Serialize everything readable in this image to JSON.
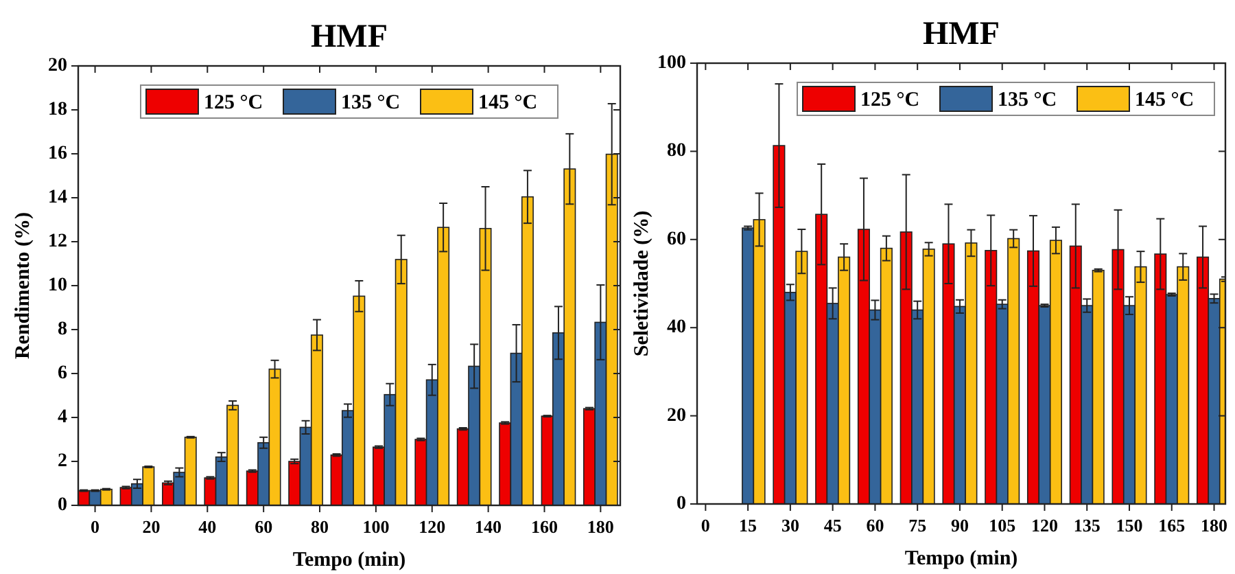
{
  "chart_data": [
    {
      "type": "bar",
      "title": "HMF",
      "xlabel": "Tempo (min)",
      "ylabel": "Rendimento (%)",
      "x": [
        0,
        15,
        30,
        45,
        60,
        75,
        90,
        105,
        120,
        135,
        150,
        165,
        180
      ],
      "xlim": [
        -6,
        187
      ],
      "xticks": [
        0,
        20,
        40,
        60,
        80,
        100,
        120,
        140,
        160,
        180
      ],
      "ylim": [
        0,
        20
      ],
      "yticks": [
        0,
        2,
        4,
        6,
        8,
        10,
        12,
        14,
        16,
        18,
        20
      ],
      "legend": "top",
      "grid": false,
      "series": [
        {
          "name": "125 °C",
          "color": "#ee0000",
          "values": [
            0.67,
            0.81,
            1.02,
            1.25,
            1.56,
            2.0,
            2.29,
            2.65,
            3.0,
            3.48,
            3.75,
            4.06,
            4.4
          ],
          "errors": [
            0.03,
            0.05,
            0.08,
            0.05,
            0.05,
            0.1,
            0.05,
            0.05,
            0.05,
            0.05,
            0.05,
            0.03,
            0.05
          ]
        },
        {
          "name": "135 °C",
          "color": "#34659a",
          "values": [
            0.67,
            0.98,
            1.5,
            2.2,
            2.85,
            3.55,
            4.31,
            5.04,
            5.71,
            6.33,
            6.92,
            7.85,
            8.33
          ],
          "errors": [
            0.03,
            0.2,
            0.2,
            0.2,
            0.25,
            0.3,
            0.3,
            0.5,
            0.7,
            1.0,
            1.3,
            1.2,
            1.7
          ]
        },
        {
          "name": "145 °C",
          "color": "#fbbf14",
          "values": [
            0.73,
            1.75,
            3.1,
            4.55,
            6.2,
            7.75,
            9.52,
            11.19,
            12.65,
            12.6,
            14.04,
            15.31,
            15.98
          ],
          "errors": [
            0.03,
            0.03,
            0.03,
            0.2,
            0.4,
            0.7,
            0.7,
            1.1,
            1.1,
            1.9,
            1.2,
            1.6,
            2.3
          ]
        }
      ]
    },
    {
      "type": "bar",
      "title": "HMF",
      "xlabel": "Tempo (min)",
      "ylabel": "Seletividade (%)",
      "x": [
        15,
        30,
        45,
        60,
        75,
        90,
        105,
        120,
        135,
        150,
        165,
        180
      ],
      "xlim": [
        -3,
        184
      ],
      "xticks": [
        0,
        15,
        30,
        45,
        60,
        75,
        90,
        105,
        120,
        135,
        150,
        165,
        180
      ],
      "ylim": [
        0,
        100
      ],
      "yticks": [
        0,
        20,
        40,
        60,
        80,
        100
      ],
      "legend": "top right",
      "grid": false,
      "series": [
        {
          "name": "125 °C",
          "color": "#ee0000",
          "values": [
            null,
            81.3,
            65.7,
            62.3,
            61.7,
            59,
            57.5,
            57.4,
            58.5,
            57.7,
            56.7,
            56
          ],
          "errors": [
            null,
            14,
            11.4,
            11.6,
            13,
            9,
            8,
            8,
            9.5,
            9,
            8,
            7
          ]
        },
        {
          "name": "135 °C",
          "color": "#34659a",
          "values": [
            62.6,
            48,
            45.5,
            44,
            44,
            44.8,
            45.3,
            45,
            45,
            45,
            47.5,
            46.6
          ],
          "errors": [
            0.4,
            1.8,
            3.5,
            2.2,
            2,
            1.5,
            1,
            0.3,
            1.5,
            2,
            0.3,
            1
          ]
        },
        {
          "name": "145 °C",
          "color": "#fbbf14",
          "values": [
            64.5,
            57.3,
            56,
            58,
            57.8,
            59.2,
            60.2,
            59.8,
            53,
            53.8,
            53.8,
            51
          ],
          "errors": [
            6,
            5,
            3,
            2.8,
            1.5,
            3,
            2,
            3,
            0.3,
            3.5,
            3,
            0.5
          ]
        }
      ]
    }
  ]
}
